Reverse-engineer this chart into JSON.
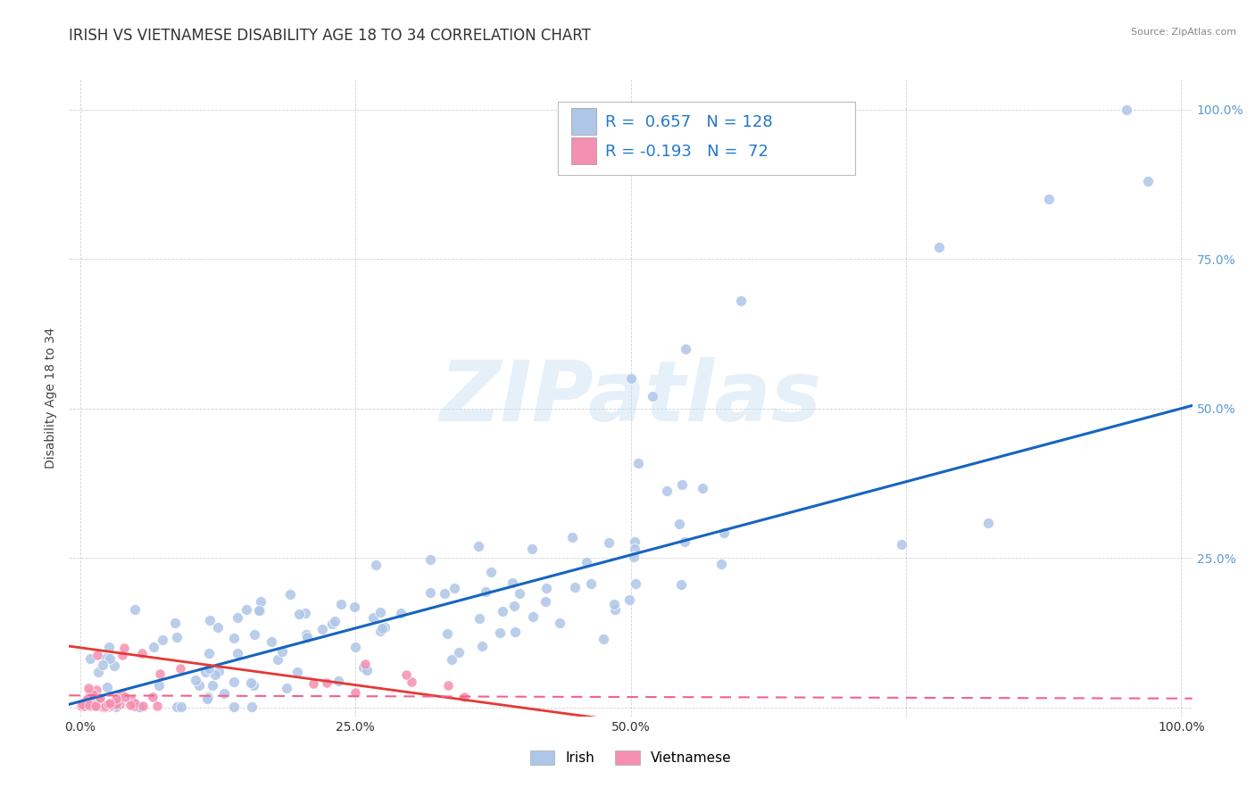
{
  "title": "IRISH VS VIETNAMESE DISABILITY AGE 18 TO 34 CORRELATION CHART",
  "source": "Source: ZipAtlas.com",
  "ylabel": "Disability Age 18 to 34",
  "irish_R": 0.657,
  "irish_N": 128,
  "viet_R": -0.193,
  "viet_N": 72,
  "irish_color": "#aec6e8",
  "irish_line_color": "#1565c0",
  "viet_color": "#f48fb1",
  "viet_line_color": "#e53935",
  "viet_dash_color": "#f06292",
  "watermark": "ZIPatlas",
  "background_color": "#ffffff",
  "title_fontsize": 12,
  "axis_label_fontsize": 10,
  "tick_fontsize": 10,
  "legend_fontsize": 13,
  "right_tick_color": "#5b9bd5",
  "bottom_tick_color": "#333333"
}
